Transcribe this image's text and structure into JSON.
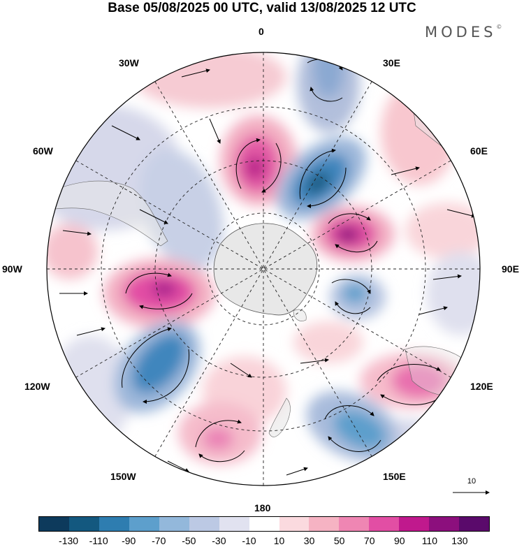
{
  "title": "Base 05/08/2025 00 UTC, valid 13/08/2025 12 UTC",
  "brand": "MODES",
  "brand_mark": "©",
  "longitude_labels": {
    "deg0": "0",
    "deg30e": "30E",
    "deg60e": "60E",
    "deg90e": "90E",
    "deg120e": "120E",
    "deg150e": "150E",
    "deg180": "180",
    "deg150w": "150W",
    "deg120w": "120W",
    "deg90w": "90W",
    "deg60w": "60W",
    "deg30w": "30W"
  },
  "vector_reference_value": "10",
  "colorbar": {
    "ticks": [
      "-130",
      "-110",
      "-90",
      "-70",
      "-50",
      "-30",
      "-10",
      "10",
      "30",
      "50",
      "70",
      "90",
      "110",
      "130"
    ],
    "colors": [
      "#0d3a5c",
      "#13587f",
      "#2e7db0",
      "#5d9fcc",
      "#93b8db",
      "#bcc9e4",
      "#e1e2f0",
      "#ffffff",
      "#fbdadf",
      "#f6b3c3",
      "#ef86b3",
      "#e24ea4",
      "#c0198d",
      "#8c0f7d",
      "#5a0a6b"
    ]
  }
}
